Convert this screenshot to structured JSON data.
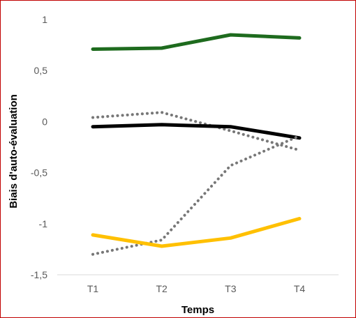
{
  "chart_data": {
    "type": "line",
    "title": "",
    "xlabel": "Temps",
    "ylabel": "Biais d'auto-évaluation",
    "categories": [
      "T1",
      "T2",
      "T3",
      "T4"
    ],
    "ylim": [
      -1.5,
      1
    ],
    "yticks": [
      1,
      0.5,
      0,
      -0.5,
      -1,
      -1.5
    ],
    "ytick_labels": [
      "1",
      "0,5",
      "0",
      "-0,5",
      "-1",
      "-1,5"
    ],
    "grid": false,
    "legend": "none",
    "series": [
      {
        "values": [
          0.71,
          0.72,
          0.85,
          0.82
        ],
        "color": "#1e6b1e",
        "style": "solid"
      },
      {
        "values": [
          0.04,
          0.09,
          -0.09,
          -0.28
        ],
        "color": "#777777",
        "style": "dotted"
      },
      {
        "values": [
          -0.05,
          -0.03,
          -0.05,
          -0.16
        ],
        "color": "#000000",
        "style": "solid"
      },
      {
        "values": [
          -1.3,
          -1.16,
          -0.43,
          -0.14
        ],
        "color": "#777777",
        "style": "dotted"
      },
      {
        "values": [
          -1.11,
          -1.22,
          -1.14,
          -0.95
        ],
        "color": "#ffc000",
        "style": "solid"
      }
    ]
  }
}
